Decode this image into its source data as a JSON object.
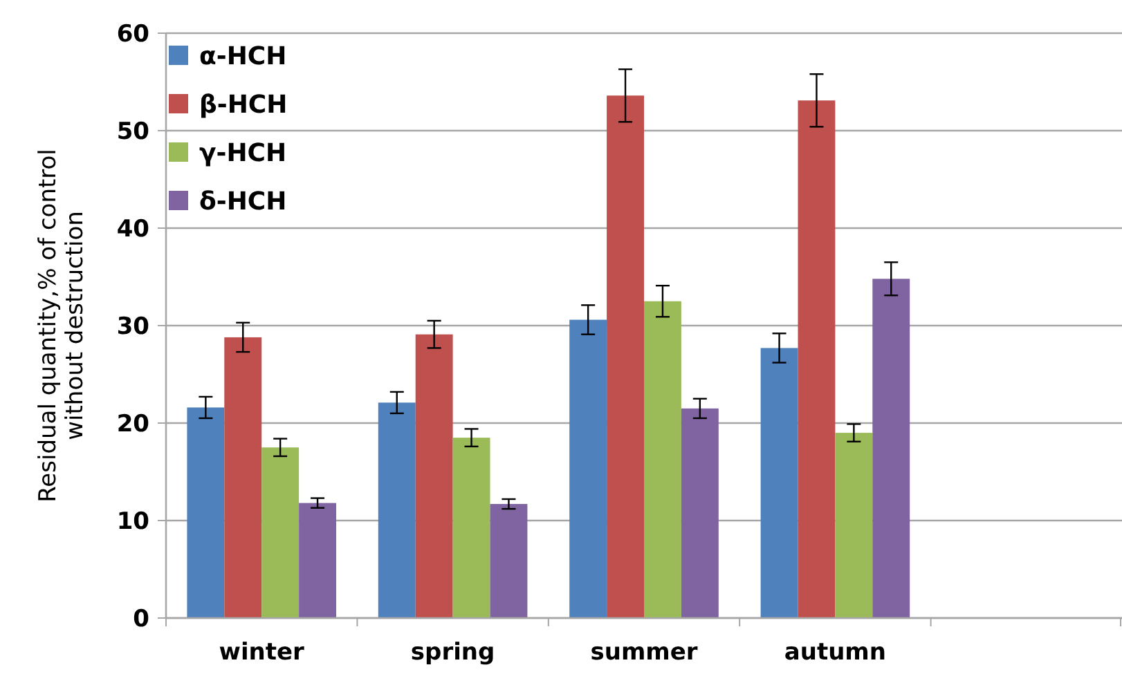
{
  "chart_data": {
    "type": "bar",
    "ylabel": "Residual quantity,% of control without destruction",
    "categories": [
      "winter",
      "spring",
      "summer",
      "autumn",
      null
    ],
    "series": [
      {
        "name": "α-HCH",
        "color": "#4f81bd",
        "values": [
          21.6,
          22.1,
          30.6,
          27.7,
          null
        ],
        "errors": [
          1.1,
          1.1,
          1.5,
          1.5,
          null
        ]
      },
      {
        "name": "β-HCH",
        "color": "#c0504d",
        "values": [
          28.8,
          29.1,
          53.6,
          53.1,
          null
        ],
        "errors": [
          1.5,
          1.4,
          2.7,
          2.7,
          null
        ]
      },
      {
        "name": "γ-HCH",
        "color": "#9bbb59",
        "values": [
          17.5,
          18.5,
          32.5,
          19.0,
          null
        ],
        "errors": [
          0.9,
          0.9,
          1.6,
          0.9,
          null
        ]
      },
      {
        "name": "δ-HCH",
        "color": "#8064a2",
        "values": [
          11.8,
          11.7,
          21.5,
          34.8,
          null
        ],
        "errors": [
          0.5,
          0.5,
          1.0,
          1.7,
          null
        ]
      }
    ],
    "ylim": [
      0,
      60
    ],
    "yticks": [
      0,
      10,
      20,
      30,
      40,
      50,
      60
    ],
    "grid": "y",
    "legend": "top left"
  }
}
